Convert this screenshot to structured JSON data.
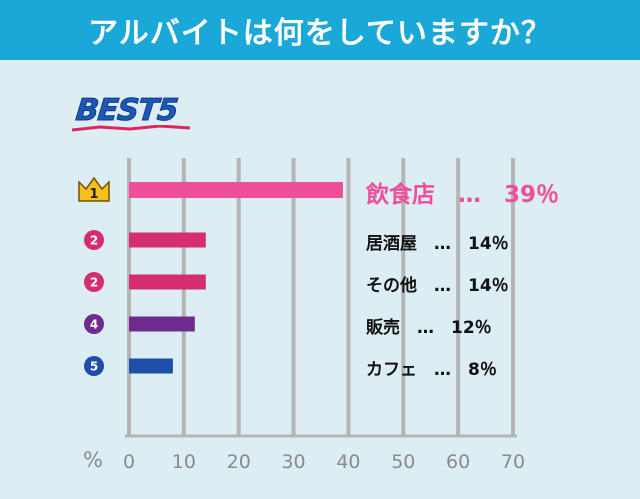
{
  "header": {
    "title": "アルバイトは何をしていますか？"
  },
  "badge": {
    "label": "BEST5"
  },
  "chart_data": {
    "type": "bar",
    "orientation": "horizontal",
    "unit": "%",
    "xlim": [
      0,
      70
    ],
    "ticks": [
      0,
      10,
      20,
      30,
      40,
      50,
      60,
      70
    ],
    "grid": true,
    "items": [
      {
        "rank": "1",
        "category": "飲食店",
        "value": 39,
        "label": "飲食店　…　39％",
        "color": "#ef4e9a"
      },
      {
        "rank": "2",
        "category": "居酒屋",
        "value": 14,
        "label": "居酒屋　…　14％",
        "color": "#d42e70"
      },
      {
        "rank": "2",
        "category": "その他",
        "value": 14,
        "label": "その他　…　14％",
        "color": "#d42e70"
      },
      {
        "rank": "4",
        "category": "販売",
        "value": 12,
        "label": "販売　…　12％",
        "color": "#6e2a8c"
      },
      {
        "rank": "5",
        "category": "カフェ",
        "value": 8,
        "label": "カフェ　…　8％",
        "color": "#1f4ea8"
      }
    ]
  },
  "colors": {
    "header_bg": "#1aa8d8",
    "panel_bg": "#dcedf4",
    "grid": "#b5b5b5",
    "crown": "#f3c21e",
    "badge_text": "#1e58b5",
    "badge_underline": "#e0245e"
  },
  "icons": {
    "rank1": "crown-icon"
  }
}
